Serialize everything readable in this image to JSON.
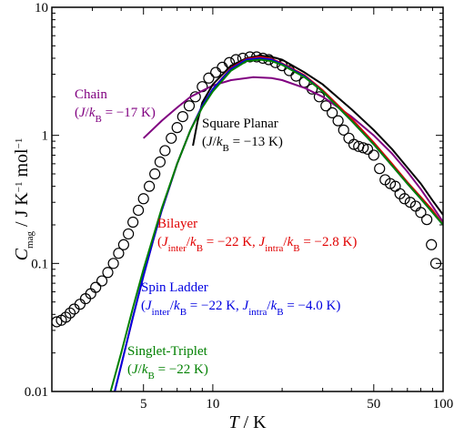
{
  "chart_data": {
    "type": "line",
    "log_x": true,
    "log_y": true,
    "xlim": [
      2,
      100
    ],
    "ylim": [
      0.01,
      10
    ],
    "xticks": [
      5,
      10,
      50,
      100
    ],
    "xminorticks": [
      2,
      3,
      4,
      6,
      7,
      8,
      9,
      20,
      30,
      40,
      60,
      70,
      80,
      90
    ],
    "yticks": [
      0.01,
      0.1,
      1,
      10
    ],
    "yminorticks": [
      0.02,
      0.03,
      0.04,
      0.05,
      0.06,
      0.07,
      0.08,
      0.09,
      0.2,
      0.3,
      0.4,
      0.5,
      0.6,
      0.7,
      0.8,
      0.9,
      2,
      3,
      4,
      5,
      6,
      7,
      8,
      9
    ],
    "xlabel": [
      {
        "t": "T",
        "i": true
      },
      {
        "t": "  /  K"
      }
    ],
    "ylabel": [
      {
        "t": "C",
        "i": true
      },
      {
        "t": "mag",
        "sub": true
      },
      {
        "t": "  /  J K"
      },
      {
        "t": "−1",
        "sup": true
      },
      {
        "t": " mol"
      },
      {
        "t": "−1",
        "sup": true
      }
    ],
    "series": [
      {
        "marker": "circle",
        "color": "#000000",
        "x": [
          2.1,
          2.2,
          2.3,
          2.4,
          2.5,
          2.65,
          2.8,
          2.95,
          3.1,
          3.3,
          3.5,
          3.7,
          3.9,
          4.1,
          4.3,
          4.5,
          4.75,
          5.0,
          5.3,
          5.6,
          5.9,
          6.2,
          6.6,
          7.0,
          7.4,
          7.9,
          8.4,
          9.0,
          9.6,
          10.3,
          11,
          11.8,
          12.6,
          13.5,
          14.5,
          15.5,
          16.5,
          17.5,
          18.7,
          20,
          21.5,
          23,
          25,
          27,
          29,
          31,
          33,
          35,
          37,
          39,
          41,
          43,
          45,
          47,
          50,
          53,
          56,
          59,
          62,
          65,
          68,
          72,
          76,
          80,
          85,
          89,
          93
        ],
        "values": [
          0.035,
          0.036,
          0.038,
          0.041,
          0.044,
          0.048,
          0.053,
          0.058,
          0.065,
          0.073,
          0.085,
          0.1,
          0.12,
          0.14,
          0.17,
          0.21,
          0.26,
          0.32,
          0.4,
          0.5,
          0.62,
          0.76,
          0.95,
          1.15,
          1.4,
          1.7,
          2.0,
          2.4,
          2.8,
          3.1,
          3.4,
          3.7,
          3.9,
          4.0,
          4.1,
          4.1,
          4.0,
          3.9,
          3.7,
          3.5,
          3.2,
          2.9,
          2.6,
          2.3,
          2.0,
          1.7,
          1.5,
          1.3,
          1.1,
          0.95,
          0.85,
          0.82,
          0.8,
          0.78,
          0.7,
          0.55,
          0.45,
          0.42,
          0.4,
          0.35,
          0.32,
          0.3,
          0.28,
          0.25,
          0.22,
          0.14,
          0.1
        ]
      },
      {
        "marker": "line",
        "color": "#800080",
        "label": [
          [
            {
              "t": "Chain"
            }
          ],
          [
            {
              "t": "("
            },
            {
              "t": "J",
              "i": true
            },
            {
              "t": "/"
            },
            {
              "t": "k",
              "i": true
            },
            {
              "t": "B",
              "sub": true
            },
            {
              "t": " = −17 K)"
            }
          ]
        ],
        "x": [
          5,
          6,
          7,
          8,
          10,
          12,
          15,
          18,
          20,
          25,
          30,
          40,
          50,
          60,
          70,
          80,
          90,
          100
        ],
        "values": [
          0.95,
          1.3,
          1.65,
          2.0,
          2.45,
          2.7,
          2.85,
          2.8,
          2.7,
          2.35,
          2.0,
          1.4,
          1.0,
          0.72,
          0.52,
          0.38,
          0.28,
          0.21
        ]
      },
      {
        "marker": "line",
        "color": "#000000",
        "label": [
          [
            {
              "t": "Square Planar"
            }
          ],
          [
            {
              "t": "("
            },
            {
              "t": "J",
              "i": true
            },
            {
              "t": "/"
            },
            {
              "t": "k",
              "i": true
            },
            {
              "t": "B",
              "sub": true
            },
            {
              "t": " = −13 K)"
            }
          ]
        ],
        "x": [
          8.2,
          8.6,
          9,
          10,
          12,
          14,
          16,
          18,
          20,
          25,
          30,
          40,
          50,
          60,
          70,
          80,
          90,
          100
        ],
        "values": [
          0.83,
          1.3,
          1.8,
          2.5,
          3.5,
          4.0,
          4.2,
          4.1,
          3.9,
          3.1,
          2.5,
          1.6,
          1.1,
          0.78,
          0.56,
          0.42,
          0.31,
          0.24
        ]
      },
      {
        "marker": "line",
        "color": "#e00000",
        "label": [
          [
            {
              "t": "Bilayer"
            }
          ],
          [
            {
              "t": "("
            },
            {
              "t": "J",
              "i": true
            },
            {
              "t": "inter",
              "sub": true
            },
            {
              "t": "/"
            },
            {
              "t": "k",
              "i": true
            },
            {
              "t": "B",
              "sub": true
            },
            {
              "t": " = −22 K, "
            },
            {
              "t": "J",
              "i": true
            },
            {
              "t": "intra",
              "sub": true
            },
            {
              "t": "/"
            },
            {
              "t": "k",
              "i": true
            },
            {
              "t": "B",
              "sub": true
            },
            {
              "t": " = −2.8 K)"
            }
          ]
        ],
        "x": [
          3.75,
          4,
          4.5,
          5,
          5.5,
          6,
          7,
          8,
          9,
          10,
          12,
          14,
          16,
          18,
          20,
          25,
          30,
          40,
          50,
          60,
          70,
          80,
          90,
          100
        ],
        "values": [
          0.01,
          0.016,
          0.038,
          0.08,
          0.15,
          0.26,
          0.6,
          1.1,
          1.7,
          2.3,
          3.35,
          3.95,
          4.1,
          3.95,
          3.65,
          2.95,
          2.25,
          1.35,
          0.88,
          0.6,
          0.43,
          0.33,
          0.26,
          0.2
        ]
      },
      {
        "marker": "line",
        "color": "#0000e0",
        "label": [
          [
            {
              "t": "Spin Ladder"
            }
          ],
          [
            {
              "t": "("
            },
            {
              "t": "J",
              "i": true
            },
            {
              "t": "inter",
              "sub": true
            },
            {
              "t": "/"
            },
            {
              "t": "k",
              "i": true
            },
            {
              "t": "B",
              "sub": true
            },
            {
              "t": " = −22 K, "
            },
            {
              "t": "J",
              "i": true
            },
            {
              "t": "intra",
              "sub": true
            },
            {
              "t": "/"
            },
            {
              "t": "k",
              "i": true
            },
            {
              "t": "B",
              "sub": true
            },
            {
              "t": " = −4.0 K)"
            }
          ]
        ],
        "x": [
          3.75,
          4,
          4.5,
          5,
          5.5,
          6,
          7,
          8,
          9,
          10,
          12,
          14,
          16,
          18,
          20,
          25,
          30,
          40,
          50,
          60,
          70,
          80,
          90,
          100
        ],
        "values": [
          0.01,
          0.016,
          0.038,
          0.08,
          0.15,
          0.26,
          0.6,
          1.1,
          1.7,
          2.3,
          3.3,
          3.9,
          4.0,
          3.9,
          3.6,
          2.9,
          2.2,
          1.3,
          0.85,
          0.58,
          0.42,
          0.32,
          0.25,
          0.2
        ]
      },
      {
        "marker": "line",
        "color": "#008000",
        "label": [
          [
            {
              "t": "Singlet-Triplet"
            }
          ],
          [
            {
              "t": "("
            },
            {
              "t": "J",
              "i": true
            },
            {
              "t": "/"
            },
            {
              "t": "k",
              "i": true
            },
            {
              "t": "B",
              "sub": true
            },
            {
              "t": " = −22 K)"
            }
          ]
        ],
        "x": [
          3.6,
          4,
          4.5,
          5,
          5.5,
          6,
          7,
          8,
          9,
          10,
          12,
          14,
          16,
          18,
          20,
          25,
          30,
          40,
          50,
          60,
          70,
          80,
          90,
          100
        ],
        "values": [
          0.01,
          0.02,
          0.045,
          0.09,
          0.16,
          0.27,
          0.6,
          1.1,
          1.65,
          2.2,
          3.2,
          3.8,
          3.9,
          3.8,
          3.55,
          2.85,
          2.2,
          1.3,
          0.85,
          0.58,
          0.42,
          0.32,
          0.25,
          0.2
        ]
      }
    ]
  }
}
